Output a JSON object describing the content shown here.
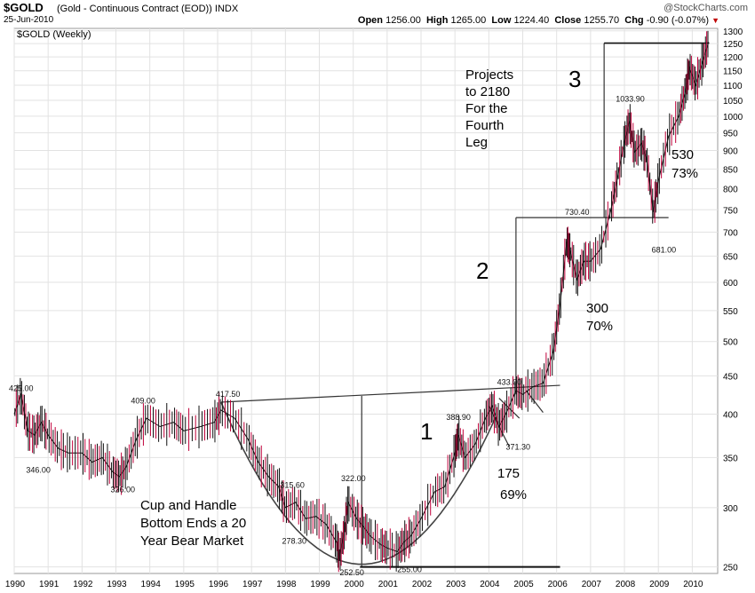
{
  "header": {
    "symbol": "$GOLD",
    "description": "(Gold - Continuous Contract (EOD))",
    "exchange": "INDX",
    "date": "25-Jun-2010",
    "watermark": "@StockCharts.com",
    "open_label": "Open",
    "open": "1256.00",
    "high_label": "High",
    "high": "1265.00",
    "low_label": "Low",
    "low": "1224.40",
    "close_label": "Close",
    "close": "1255.70",
    "chg_label": "Chg",
    "chg": "-0.90 (-0.07%)",
    "down_arrow_icon": "triangle-down-icon"
  },
  "chart_data": {
    "type": "line",
    "title": "$GOLD (Weekly)",
    "y_scale": "log",
    "ylim": [
      245,
      1310
    ],
    "xlim": [
      1990,
      2010.75
    ],
    "grid": true,
    "y_ticks": [
      250,
      300,
      350,
      400,
      450,
      500,
      550,
      600,
      650,
      700,
      750,
      800,
      850,
      900,
      950,
      1000,
      1050,
      1100,
      1150,
      1200,
      1250,
      1300
    ],
    "x_ticks": [
      "1990",
      "1991",
      "1992",
      "1993",
      "1994",
      "1995",
      "1996",
      "1997",
      "1998",
      "1999",
      "2000",
      "2001",
      "2002",
      "2003",
      "2004",
      "2005",
      "2006",
      "2007",
      "2008",
      "2009",
      "2010"
    ],
    "series": [
      {
        "color": "#c0003a",
        "x": [
          1990.0,
          1990.2,
          1990.4,
          1990.6,
          1990.8,
          1991.0,
          1991.3,
          1991.6,
          1992.0,
          1992.3,
          1992.6,
          1992.9,
          1993.1,
          1993.3,
          1993.6,
          1993.9,
          1994.3,
          1994.7,
          1995.0,
          1995.5,
          1995.9,
          1996.1,
          1996.5,
          1996.9,
          1997.2,
          1997.5,
          1997.8,
          1998.0,
          1998.3,
          1998.6,
          1998.9,
          1999.2,
          1999.5,
          1999.6,
          1999.75,
          1999.85,
          2000.1,
          2000.3,
          2000.5,
          2000.8,
          2001.0,
          2001.3,
          2001.5,
          2001.7,
          2002.0,
          2002.4,
          2002.7,
          2003.0,
          2003.1,
          2003.3,
          2003.6,
          2003.9,
          2004.1,
          2004.3,
          2004.5,
          2004.8,
          2005.0,
          2005.3,
          2005.6,
          2005.9,
          2006.1,
          2006.3,
          2006.4,
          2006.6,
          2006.8,
          2007.0,
          2007.3,
          2007.6,
          2007.8,
          2008.0,
          2008.15,
          2008.3,
          2008.5,
          2008.65,
          2008.85,
          2009.0,
          2009.3,
          2009.6,
          2009.8,
          2009.92,
          2010.1,
          2010.3,
          2010.48
        ],
        "values": [
          400,
          425,
          380,
          375,
          390,
          375,
          360,
          355,
          355,
          345,
          350,
          335,
          330,
          340,
          370,
          395,
          385,
          390,
          380,
          385,
          390,
          405,
          395,
          370,
          345,
          330,
          320,
          300,
          305,
          290,
          292,
          285,
          270,
          258,
          280,
          305,
          290,
          283,
          275,
          268,
          265,
          262,
          270,
          275,
          290,
          315,
          320,
          355,
          375,
          350,
          365,
          395,
          410,
          385,
          400,
          430,
          425,
          435,
          440,
          485,
          560,
          680,
          660,
          605,
          640,
          640,
          665,
          750,
          830,
          925,
          985,
          895,
          920,
          880,
          745,
          820,
          940,
          1000,
          1080,
          1160,
          1100,
          1180,
          1256
        ]
      }
    ],
    "annotations": [
      {
        "text": "425.00",
        "x": 1990.0,
        "y": 425
      },
      {
        "text": "346.00",
        "x": 1990.35,
        "y": 346
      },
      {
        "text": "409.00",
        "x": 1993.6,
        "y": 409
      },
      {
        "text": "326.00",
        "x": 1993.0,
        "y": 326
      },
      {
        "text": "417.50",
        "x": 1996.1,
        "y": 417.5
      },
      {
        "text": "315.60",
        "x": 1998.0,
        "y": 315.6
      },
      {
        "text": "278.30",
        "x": 1997.9,
        "y": 278.3
      },
      {
        "text": "322.00",
        "x": 1999.8,
        "y": 322
      },
      {
        "text": "252.50",
        "x": 1999.6,
        "y": 252.5
      },
      {
        "text": "255.00",
        "x": 2001.3,
        "y": 255
      },
      {
        "text": "388.90",
        "x": 2002.9,
        "y": 388.9
      },
      {
        "text": "433.00",
        "x": 2004.4,
        "y": 433
      },
      {
        "text": "371.30",
        "x": 2004.5,
        "y": 371.3
      },
      {
        "text": "730.40",
        "x": 2006.4,
        "y": 730.4
      },
      {
        "text": "1033.90",
        "x": 2007.9,
        "y": 1033.9
      },
      {
        "text": "681.00",
        "x": 2008.8,
        "y": 681
      }
    ],
    "labels": {
      "leg1": "1",
      "leg2": "2",
      "leg3": "3",
      "gain1_a": "175",
      "gain1_b": "69%",
      "gain2_a": "300",
      "gain2_b": "70%",
      "gain3_a": "530",
      "gain3_b": "73%",
      "projection": [
        "Projects",
        "to 2180",
        "For the",
        "Fourth",
        "Leg"
      ],
      "cup_note": [
        "Cup and Handle",
        "Bottom Ends a 20",
        "Year Bear Market"
      ]
    }
  }
}
